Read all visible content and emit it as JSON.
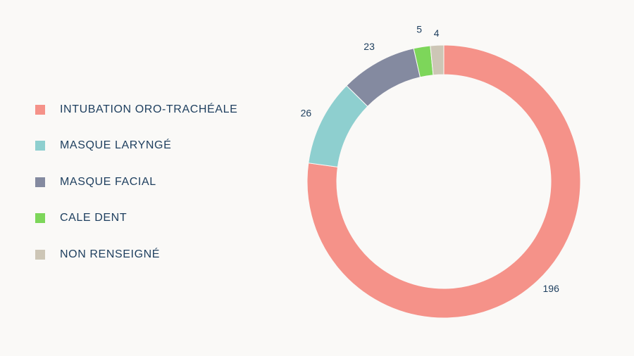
{
  "chart_data": {
    "type": "pie",
    "variant": "donut",
    "title": "",
    "legend_position": "left",
    "categories": [
      "INTUBATION ORO-TRACHÉALE",
      "MASQUE LARYNGÉ",
      "MASQUE FACIAL",
      "CALE DENT",
      "NON RENSEIGNÉ"
    ],
    "values": [
      196,
      26,
      23,
      5,
      4
    ],
    "data_labels": [
      "196",
      "26",
      "23",
      "5",
      "4"
    ],
    "colors": [
      "#f59289",
      "#8ecfcf",
      "#848aa0",
      "#7dd65a",
      "#cdc6b6"
    ]
  }
}
